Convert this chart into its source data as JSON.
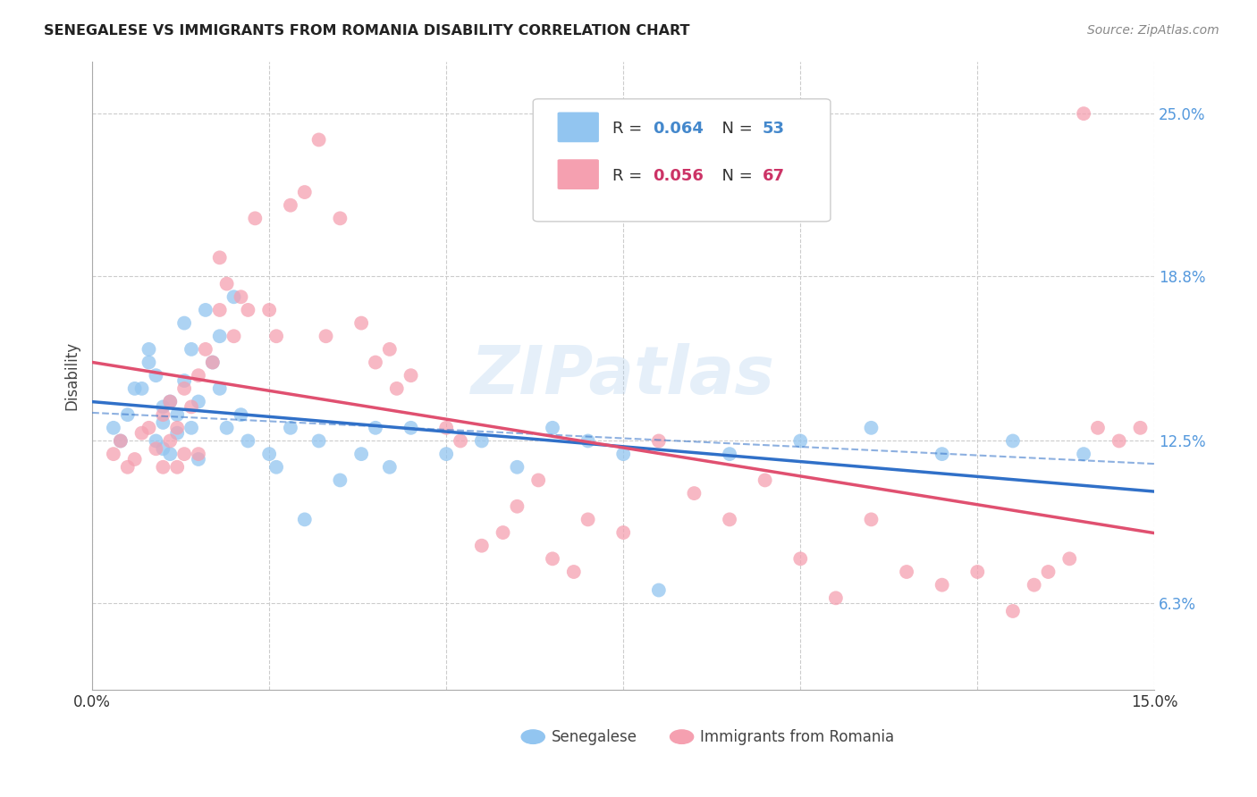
{
  "title": "SENEGALESE VS IMMIGRANTS FROM ROMANIA DISABILITY CORRELATION CHART",
  "source": "Source: ZipAtlas.com",
  "ylabel": "Disability",
  "ytick_values": [
    0.063,
    0.125,
    0.188,
    0.25
  ],
  "xlim": [
    0.0,
    0.15
  ],
  "ylim": [
    0.03,
    0.27
  ],
  "blue_color": "#92C5F0",
  "pink_color": "#F5A0B0",
  "trend_blue_color": "#3070C8",
  "trend_pink_color": "#E05070",
  "watermark": "ZIPatlas",
  "blue_x": [
    0.003,
    0.004,
    0.005,
    0.006,
    0.007,
    0.008,
    0.008,
    0.009,
    0.009,
    0.01,
    0.01,
    0.01,
    0.011,
    0.011,
    0.012,
    0.012,
    0.013,
    0.013,
    0.014,
    0.014,
    0.015,
    0.015,
    0.016,
    0.017,
    0.018,
    0.018,
    0.019,
    0.02,
    0.021,
    0.022,
    0.025,
    0.026,
    0.028,
    0.03,
    0.032,
    0.035,
    0.038,
    0.04,
    0.042,
    0.045,
    0.05,
    0.055,
    0.06,
    0.065,
    0.07,
    0.075,
    0.08,
    0.09,
    0.1,
    0.11,
    0.12,
    0.13,
    0.14
  ],
  "blue_y": [
    0.13,
    0.125,
    0.135,
    0.145,
    0.145,
    0.155,
    0.16,
    0.15,
    0.125,
    0.138,
    0.122,
    0.132,
    0.14,
    0.12,
    0.128,
    0.135,
    0.17,
    0.148,
    0.16,
    0.13,
    0.14,
    0.118,
    0.175,
    0.155,
    0.145,
    0.165,
    0.13,
    0.18,
    0.135,
    0.125,
    0.12,
    0.115,
    0.13,
    0.095,
    0.125,
    0.11,
    0.12,
    0.13,
    0.115,
    0.13,
    0.12,
    0.125,
    0.115,
    0.13,
    0.125,
    0.12,
    0.068,
    0.12,
    0.125,
    0.13,
    0.12,
    0.125,
    0.12
  ],
  "pink_x": [
    0.003,
    0.004,
    0.005,
    0.006,
    0.007,
    0.008,
    0.009,
    0.01,
    0.01,
    0.011,
    0.011,
    0.012,
    0.012,
    0.013,
    0.013,
    0.014,
    0.015,
    0.015,
    0.016,
    0.017,
    0.018,
    0.018,
    0.019,
    0.02,
    0.021,
    0.022,
    0.023,
    0.025,
    0.026,
    0.028,
    0.03,
    0.032,
    0.033,
    0.035,
    0.038,
    0.04,
    0.042,
    0.043,
    0.045,
    0.05,
    0.052,
    0.055,
    0.058,
    0.06,
    0.063,
    0.065,
    0.068,
    0.07,
    0.075,
    0.08,
    0.085,
    0.09,
    0.095,
    0.1,
    0.105,
    0.11,
    0.115,
    0.12,
    0.125,
    0.13,
    0.133,
    0.135,
    0.138,
    0.14,
    0.142,
    0.145,
    0.148
  ],
  "pink_y": [
    0.12,
    0.125,
    0.115,
    0.118,
    0.128,
    0.13,
    0.122,
    0.135,
    0.115,
    0.14,
    0.125,
    0.115,
    0.13,
    0.145,
    0.12,
    0.138,
    0.15,
    0.12,
    0.16,
    0.155,
    0.195,
    0.175,
    0.185,
    0.165,
    0.18,
    0.175,
    0.21,
    0.175,
    0.165,
    0.215,
    0.22,
    0.24,
    0.165,
    0.21,
    0.17,
    0.155,
    0.16,
    0.145,
    0.15,
    0.13,
    0.125,
    0.085,
    0.09,
    0.1,
    0.11,
    0.08,
    0.075,
    0.095,
    0.09,
    0.125,
    0.105,
    0.095,
    0.11,
    0.08,
    0.065,
    0.095,
    0.075,
    0.07,
    0.075,
    0.06,
    0.07,
    0.075,
    0.08,
    0.25,
    0.13,
    0.125,
    0.13
  ]
}
